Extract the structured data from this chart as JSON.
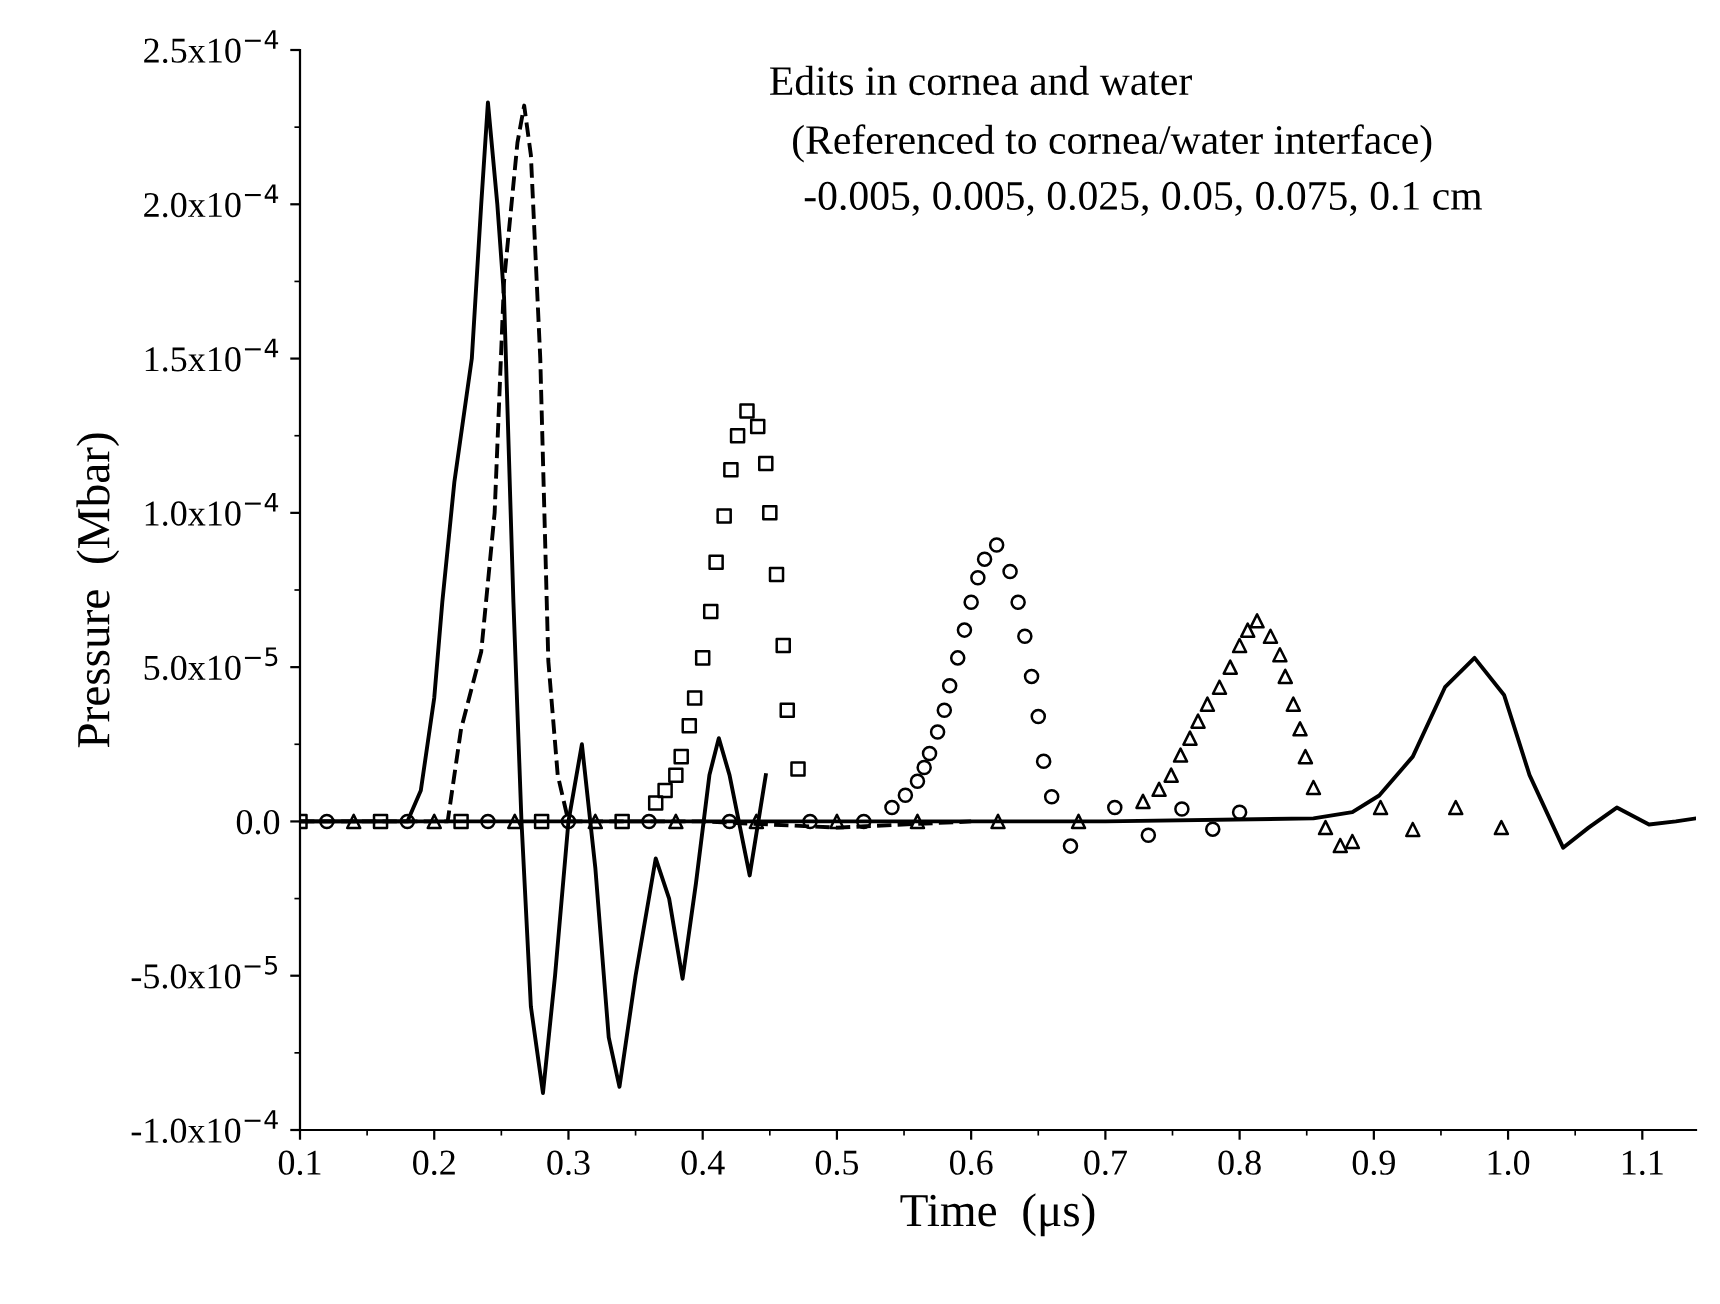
{
  "chart_data": {
    "type": "line",
    "xlabel": "Time  (μs)",
    "ylabel": "Pressure  (Mbar)",
    "annotations": [
      "Edits in cornea and water",
      "(Referenced to cornea/water interface)",
      "-0.005, 0.005, 0.025, 0.05, 0.075, 0.1 cm"
    ],
    "xlim": [
      0.1,
      1.14
    ],
    "xticks": [
      0.1,
      0.2,
      0.3,
      0.4,
      0.5,
      0.6,
      0.7,
      0.8,
      0.9,
      {
        "value": 1.0,
        "label": "1.0"
      },
      1.1
    ],
    "ylim": [
      -0.0001,
      0.00025
    ],
    "yticks": [
      {
        "value": -0.0001,
        "label": "-1.0x10$^{−4}$"
      },
      {
        "value": -5e-05,
        "label": "-5.0x10$^{−5}$"
      },
      {
        "value": 0,
        "label": "0.0"
      },
      {
        "value": 5e-05,
        "label": "5.0x10$^{−5}$"
      },
      {
        "value": 0.0001,
        "label": "1.0x10$^{−4}$"
      },
      {
        "value": 0.00015,
        "label": "1.5x10$^{−4}$"
      },
      {
        "value": 0.0002,
        "label": "2.0x10$^{−4}$"
      },
      {
        "value": 0.00025,
        "label": "2.5x10$^{−4}$"
      }
    ],
    "grid": false,
    "legend": false,
    "series": [
      {
        "line_style": "solid",
        "marker": "none",
        "color": "#000000",
        "x": [
          0.1,
          0.15,
          0.18,
          0.19,
          0.2,
          0.206,
          0.215,
          0.228,
          0.235,
          0.24,
          0.247,
          0.252,
          0.259,
          0.265,
          0.272,
          0.281,
          0.29,
          0.3,
          0.31,
          0.32,
          0.33,
          0.338,
          0.35,
          0.365,
          0.375,
          0.385,
          0.395,
          0.405,
          0.412,
          0.42,
          0.435,
          0.447
        ],
        "values": [
          0,
          0,
          0,
          1e-05,
          4e-05,
          7.1e-05,
          0.00011,
          0.00015,
          0.0002,
          0.000233,
          0.0002,
          0.00017,
          7.1e-05,
          0,
          -6e-05,
          -8.8e-05,
          -5e-05,
          0,
          2.5e-05,
          -1.5e-05,
          -7e-05,
          -8.6e-05,
          -5e-05,
          -1.2e-05,
          -2.5e-05,
          -5.1e-05,
          -2e-05,
          1.5e-05,
          2.7e-05,
          1.5e-05,
          -1.75e-05,
          1.5e-05
        ]
      },
      {
        "line_style": "dashed",
        "marker": "none",
        "color": "#000000",
        "x": [
          0.1,
          0.2,
          0.21,
          0.22,
          0.235,
          0.245,
          0.252,
          0.262,
          0.267,
          0.272,
          0.279,
          0.285,
          0.292,
          0.3,
          0.4,
          0.5,
          0.6
        ],
        "values": [
          0,
          0,
          0,
          3e-05,
          5.5e-05,
          0.0001,
          0.000175,
          0.00022,
          0.000232,
          0.000216,
          0.00015,
          5.2e-05,
          1.5e-05,
          0,
          0,
          -2e-06,
          0
        ]
      },
      {
        "type": "scatter",
        "marker": "square",
        "color": "#000000",
        "x": [
          0.1,
          0.16,
          0.22,
          0.28,
          0.34,
          0.365,
          0.372,
          0.38,
          0.384,
          0.39,
          0.394,
          0.4,
          0.406,
          0.41,
          0.416,
          0.421,
          0.426,
          0.433,
          0.441,
          0.447,
          0.45,
          0.455,
          0.46,
          0.463,
          0.471
        ],
        "values": [
          0,
          0,
          0,
          0,
          0,
          6e-06,
          1e-05,
          1.5e-05,
          2.1e-05,
          3.1e-05,
          4e-05,
          5.3e-05,
          6.8e-05,
          8.4e-05,
          9.9e-05,
          0.000114,
          0.000125,
          0.000133,
          0.000128,
          0.000116,
          0.0001,
          8e-05,
          5.7e-05,
          3.6e-05,
          1.7e-05
        ]
      },
      {
        "type": "scatter",
        "marker": "circle",
        "color": "#000000",
        "x": [
          0.12,
          0.18,
          0.24,
          0.3,
          0.36,
          0.42,
          0.48,
          0.52,
          0.541,
          0.551,
          0.56,
          0.565,
          0.569,
          0.575,
          0.58,
          0.584,
          0.59,
          0.595,
          0.6,
          0.605,
          0.61,
          0.619,
          0.629,
          0.635,
          0.64,
          0.645,
          0.65,
          0.654,
          0.66,
          0.674,
          0.707,
          0.732,
          0.757,
          0.78,
          0.8
        ],
        "values": [
          0,
          0,
          0,
          0,
          0,
          0,
          0,
          0,
          4.5e-06,
          8.5e-06,
          1.3e-05,
          1.75e-05,
          2.2e-05,
          2.9e-05,
          3.6e-05,
          4.4e-05,
          5.3e-05,
          6.2e-05,
          7.1e-05,
          7.9e-05,
          8.5e-05,
          8.96e-05,
          8.1e-05,
          7.1e-05,
          6e-05,
          4.7e-05,
          3.4e-05,
          1.95e-05,
          8e-06,
          -8e-06,
          4.5e-06,
          -4.5e-06,
          4e-06,
          -2.5e-06,
          3e-06
        ]
      },
      {
        "type": "scatter",
        "marker": "triangle",
        "color": "#000000",
        "x": [
          0.14,
          0.2,
          0.26,
          0.32,
          0.38,
          0.44,
          0.5,
          0.56,
          0.62,
          0.68,
          0.728,
          0.74,
          0.749,
          0.756,
          0.763,
          0.769,
          0.776,
          0.785,
          0.793,
          0.8,
          0.806,
          0.813,
          0.823,
          0.83,
          0.834,
          0.84,
          0.845,
          0.849,
          0.855,
          0.864,
          0.875,
          0.884,
          0.905,
          0.929,
          0.961,
          0.995
        ],
        "values": [
          0,
          0,
          0,
          0,
          0,
          0,
          0,
          0,
          0,
          0,
          6.5e-06,
          1.04e-05,
          1.5e-05,
          2.15e-05,
          2.7e-05,
          3.25e-05,
          3.8e-05,
          4.35e-05,
          5e-05,
          5.7e-05,
          6.2e-05,
          6.5e-05,
          6e-05,
          5.4e-05,
          4.7e-05,
          3.8e-05,
          3e-05,
          2.1e-05,
          1.1e-05,
          -2e-06,
          -7.8e-06,
          -6.5e-06,
          4.5e-06,
          -2.6e-06,
          4.5e-06,
          -2e-06
        ]
      },
      {
        "line_style": "solid",
        "marker": "none",
        "color": "#000000",
        "x": [
          0.1,
          0.5,
          0.7,
          0.855,
          0.884,
          0.904,
          0.929,
          0.953,
          0.975,
          0.997,
          1.016,
          1.041,
          1.06,
          1.081,
          1.105,
          1.125,
          1.14
        ],
        "values": [
          0,
          0,
          0,
          1e-06,
          3e-06,
          8.4e-06,
          2.1e-05,
          4.35e-05,
          5.3e-05,
          4.1e-05,
          1.5e-05,
          -8.5e-06,
          -2e-06,
          4.5e-06,
          -1e-06,
          0,
          1e-06
        ]
      }
    ]
  }
}
